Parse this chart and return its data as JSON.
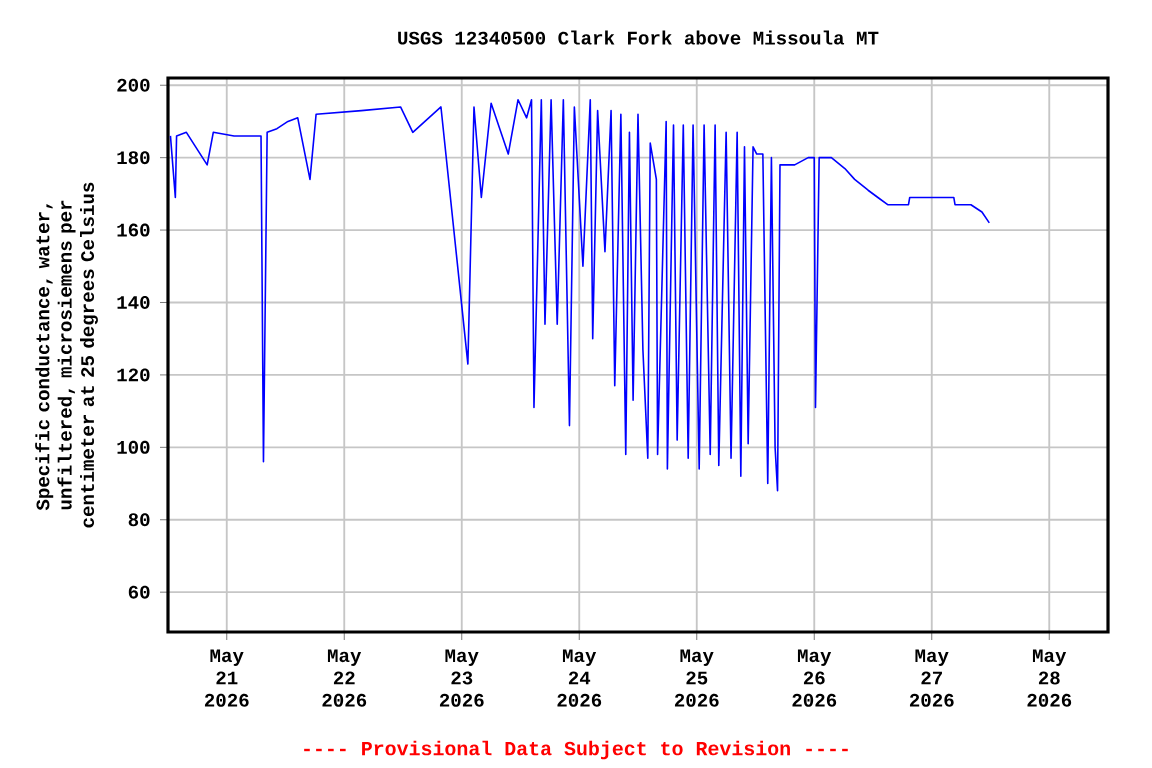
{
  "chart_data": {
    "type": "line",
    "title": "USGS 12340500 Clark Fork above Missoula MT",
    "ylabel": "Specific conductance, water, unfiltered, microsiemens per centimeter at 25 degrees Celsius",
    "annotations": [
      "---- Provisional Data Subject to Revision ----"
    ],
    "xlim": [
      "2026-05-20T12:00",
      "2026-05-28T12:00"
    ],
    "xticks": [
      {
        "value": "2026-05-21",
        "label": "May 21 2026"
      },
      {
        "value": "2026-05-22",
        "label": "May 22 2026"
      },
      {
        "value": "2026-05-23",
        "label": "May 23 2026"
      },
      {
        "value": "2026-05-24",
        "label": "May 24 2026"
      },
      {
        "value": "2026-05-25",
        "label": "May 25 2026"
      },
      {
        "value": "2026-05-26",
        "label": "May 26 2026"
      },
      {
        "value": "2026-05-27",
        "label": "May 27 2026"
      },
      {
        "value": "2026-05-28",
        "label": "May 28 2026"
      }
    ],
    "ylim": [
      49,
      202
    ],
    "yticks": [
      60,
      80,
      100,
      120,
      140,
      160,
      180,
      200
    ],
    "grid": true,
    "series": [
      {
        "color": "#0000ff",
        "x": [
          "2026-05-20T12:30",
          "2026-05-20T13:30",
          "2026-05-20T13:45",
          "2026-05-20T15:45",
          "2026-05-20T20:00",
          "2026-05-20T21:15",
          "2026-05-21T01:30",
          "2026-05-21T07:00",
          "2026-05-21T07:30",
          "2026-05-21T08:15",
          "2026-05-21T10:15",
          "2026-05-21T12:30",
          "2026-05-21T14:30",
          "2026-05-21T17:00",
          "2026-05-21T18:15",
          "2026-05-22T03:30",
          "2026-05-22T11:30",
          "2026-05-22T14:00",
          "2026-05-22T19:45",
          "2026-05-23T01:15",
          "2026-05-23T02:30",
          "2026-05-23T04:00",
          "2026-05-23T06:00",
          "2026-05-23T09:30",
          "2026-05-23T11:30",
          "2026-05-23T13:15",
          "2026-05-23T14:15",
          "2026-05-23T14:45",
          "2026-05-23T16:15",
          "2026-05-23T17:00",
          "2026-05-23T18:15",
          "2026-05-23T19:30",
          "2026-05-23T20:45",
          "2026-05-23T22:00",
          "2026-05-23T23:00",
          "2026-05-24T00:45",
          "2026-05-24T02:15",
          "2026-05-24T02:45",
          "2026-05-24T03:45",
          "2026-05-24T05:15",
          "2026-05-24T06:30",
          "2026-05-24T07:15",
          "2026-05-24T08:30",
          "2026-05-24T09:30",
          "2026-05-24T10:15",
          "2026-05-24T11:00",
          "2026-05-24T12:00",
          "2026-05-24T13:00",
          "2026-05-24T14:00",
          "2026-05-24T14:30",
          "2026-05-24T15:45",
          "2026-05-24T16:00",
          "2026-05-24T17:45",
          "2026-05-24T18:00",
          "2026-05-24T19:15",
          "2026-05-24T20:00",
          "2026-05-24T21:15",
          "2026-05-24T22:15",
          "2026-05-24T23:15",
          "2026-05-25T00:30",
          "2026-05-25T01:30",
          "2026-05-25T02:45",
          "2026-05-25T03:45",
          "2026-05-25T04:30",
          "2026-05-25T06:00",
          "2026-05-25T07:00",
          "2026-05-25T08:15",
          "2026-05-25T09:00",
          "2026-05-25T09:45",
          "2026-05-25T10:30",
          "2026-05-25T11:30",
          "2026-05-25T12:15",
          "2026-05-25T13:30",
          "2026-05-25T14:00",
          "2026-05-25T14:30",
          "2026-05-25T15:15",
          "2026-05-25T16:00",
          "2026-05-25T16:30",
          "2026-05-25T17:00",
          "2026-05-25T20:00",
          "2026-05-25T22:45",
          "2026-05-26T00:00",
          "2026-05-26T00:15",
          "2026-05-26T01:00",
          "2026-05-26T03:30",
          "2026-05-26T06:15",
          "2026-05-26T08:15",
          "2026-05-26T11:00",
          "2026-05-26T13:00",
          "2026-05-26T15:00",
          "2026-05-26T19:15",
          "2026-05-26T19:30",
          "2026-05-27T04:30",
          "2026-05-27T04:45",
          "2026-05-27T08:00",
          "2026-05-27T10:15",
          "2026-05-27T11:45"
        ],
        "values": [
          186,
          169,
          186,
          187,
          178,
          187,
          186,
          186,
          96,
          187,
          188,
          190,
          191,
          174,
          192,
          193,
          194,
          187,
          194,
          123,
          194,
          169,
          195,
          181,
          196,
          191,
          196,
          111,
          196,
          134,
          196,
          134,
          196,
          106,
          194,
          150,
          196,
          130,
          193,
          154,
          193,
          117,
          192,
          98,
          187,
          113,
          192,
          127,
          97,
          184,
          174,
          98,
          190,
          94,
          189,
          102,
          189,
          97,
          189,
          94,
          189,
          98,
          189,
          95,
          187,
          97,
          187,
          92,
          183,
          101,
          183,
          181,
          181,
          135,
          90,
          180,
          100,
          88,
          178,
          178,
          180,
          180,
          111,
          180,
          180,
          177,
          174,
          171,
          169,
          167,
          167,
          169,
          169,
          167,
          167,
          165,
          162
        ]
      }
    ]
  }
}
